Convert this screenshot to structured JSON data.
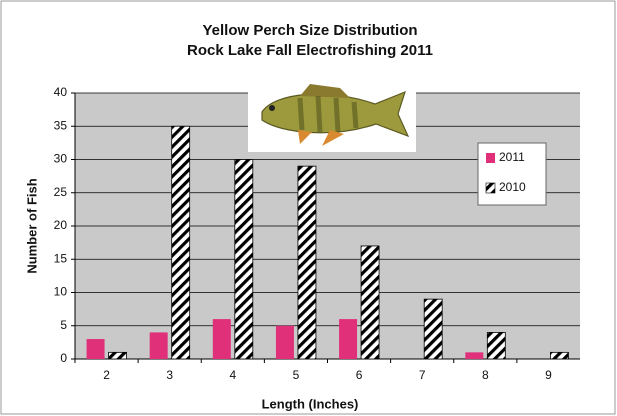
{
  "chart_data": {
    "type": "bar",
    "title": "Yellow Perch Size Distribution",
    "subtitle": "Rock Lake Fall Electrofishing 2011",
    "x_label": "Length (Inches)",
    "y_label": "Number of Fish",
    "categories": [
      "2",
      "3",
      "4",
      "5",
      "6",
      "7",
      "8",
      "9"
    ],
    "series": [
      {
        "name": "2011",
        "color": "#e0307a",
        "values": [
          3,
          4,
          6,
          5,
          6,
          0,
          1,
          0
        ]
      },
      {
        "name": "2010",
        "color": "#000000",
        "hatch": true,
        "values": [
          1,
          35,
          30,
          29,
          17,
          9,
          4,
          1
        ]
      }
    ],
    "ylim": [
      0,
      40
    ],
    "yticks": [
      0,
      5,
      10,
      15,
      20,
      25,
      30,
      35,
      40
    ],
    "grid": true,
    "legend": "right"
  }
}
